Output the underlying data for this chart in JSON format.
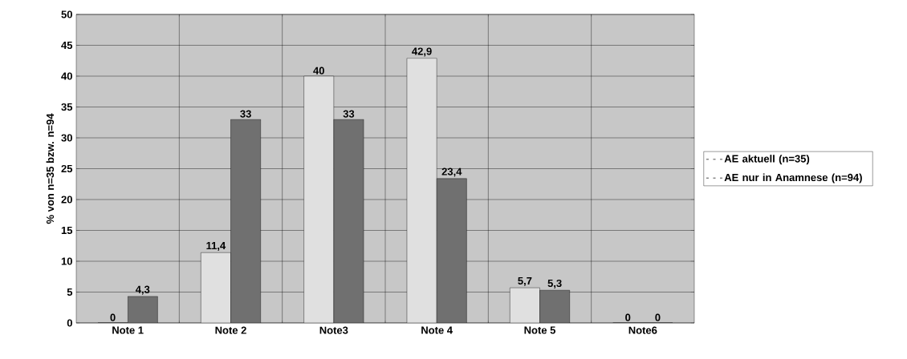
{
  "chart_data": {
    "type": "bar",
    "ylabel": "% von n=35 bzw. n=94",
    "categories": [
      "Note 1",
      "Note 2",
      "Note3",
      "Note 4",
      "Note 5",
      "Note6"
    ],
    "series": [
      {
        "name": "AE aktuell (n=35)",
        "color": "#e0e0e0",
        "values": [
          0,
          11.4,
          40,
          42.9,
          5.7,
          0
        ],
        "value_labels": [
          "0",
          "11,4",
          "40",
          "42,9",
          "5,7",
          "0"
        ]
      },
      {
        "name": "AE nur in Anamnese (n=94)",
        "color": "#707070",
        "values": [
          4.3,
          33,
          33,
          23.4,
          5.3,
          0
        ],
        "value_labels": [
          "4,3",
          "33",
          "33",
          "23,4",
          "5,3",
          "0"
        ]
      }
    ],
    "ylim": [
      0,
      50
    ],
    "yticks": [
      0,
      5,
      10,
      15,
      20,
      25,
      30,
      35,
      40,
      45,
      50
    ],
    "grid": true,
    "legend": "right"
  }
}
